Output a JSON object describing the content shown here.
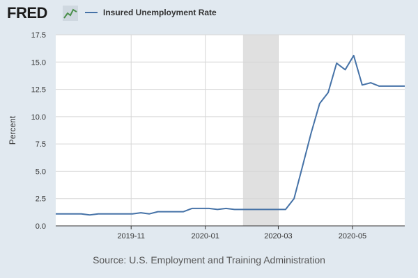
{
  "header": {
    "logo_text": "FRED",
    "logo_icon": "trend-line-icon"
  },
  "legend": {
    "label": "Insured Unemployment Rate"
  },
  "colors": {
    "series": "#4572a7",
    "recession": "#e0e0e0",
    "plot_bg": "#ffffff",
    "page_bg": "#e1e9f0"
  },
  "source": "Source: U.S. Employment and Training Administration",
  "chart_data": {
    "type": "line",
    "title": "",
    "xlabel": "",
    "ylabel": "Percent",
    "ylim": [
      0,
      17.5
    ],
    "yticks": [
      0.0,
      2.5,
      5.0,
      7.5,
      10.0,
      12.5,
      15.0,
      17.5
    ],
    "ytick_labels": [
      "0.0",
      "2.5",
      "5.0",
      "7.5",
      "10.0",
      "12.5",
      "15.0",
      "17.5"
    ],
    "xlim": [
      "2019-08-31",
      "2020-06-13"
    ],
    "xticks": [
      "2019-11-01",
      "2020-01-01",
      "2020-03-01",
      "2020-05-01"
    ],
    "xtick_labels": [
      "2019-11",
      "2020-01",
      "2020-03",
      "2020-05"
    ],
    "grid": true,
    "recession_shading": [
      [
        "2020-02-01",
        "2020-03-01"
      ]
    ],
    "series": [
      {
        "name": "Insured Unemployment Rate",
        "x": [
          "2019-08-31",
          "2019-09-07",
          "2019-09-14",
          "2019-09-21",
          "2019-09-28",
          "2019-10-05",
          "2019-10-12",
          "2019-10-19",
          "2019-10-26",
          "2019-11-02",
          "2019-11-09",
          "2019-11-16",
          "2019-11-23",
          "2019-11-30",
          "2019-12-07",
          "2019-12-14",
          "2019-12-21",
          "2019-12-28",
          "2020-01-04",
          "2020-01-11",
          "2020-01-18",
          "2020-01-25",
          "2020-02-01",
          "2020-02-08",
          "2020-02-15",
          "2020-02-22",
          "2020-02-29",
          "2020-03-07",
          "2020-03-14",
          "2020-03-21",
          "2020-03-28",
          "2020-04-04",
          "2020-04-11",
          "2020-04-18",
          "2020-04-25",
          "2020-05-02",
          "2020-05-09",
          "2020-05-16",
          "2020-05-23",
          "2020-05-30",
          "2020-06-06",
          "2020-06-13"
        ],
        "values": [
          1.1,
          1.1,
          1.1,
          1.1,
          1.0,
          1.1,
          1.1,
          1.1,
          1.1,
          1.1,
          1.2,
          1.1,
          1.3,
          1.3,
          1.3,
          1.3,
          1.6,
          1.6,
          1.6,
          1.5,
          1.6,
          1.5,
          1.5,
          1.5,
          1.5,
          1.5,
          1.5,
          1.5,
          2.5,
          5.5,
          8.5,
          11.2,
          12.2,
          14.9,
          14.3,
          15.6,
          12.9,
          13.1,
          12.8,
          12.8,
          12.8,
          12.8
        ]
      }
    ]
  }
}
